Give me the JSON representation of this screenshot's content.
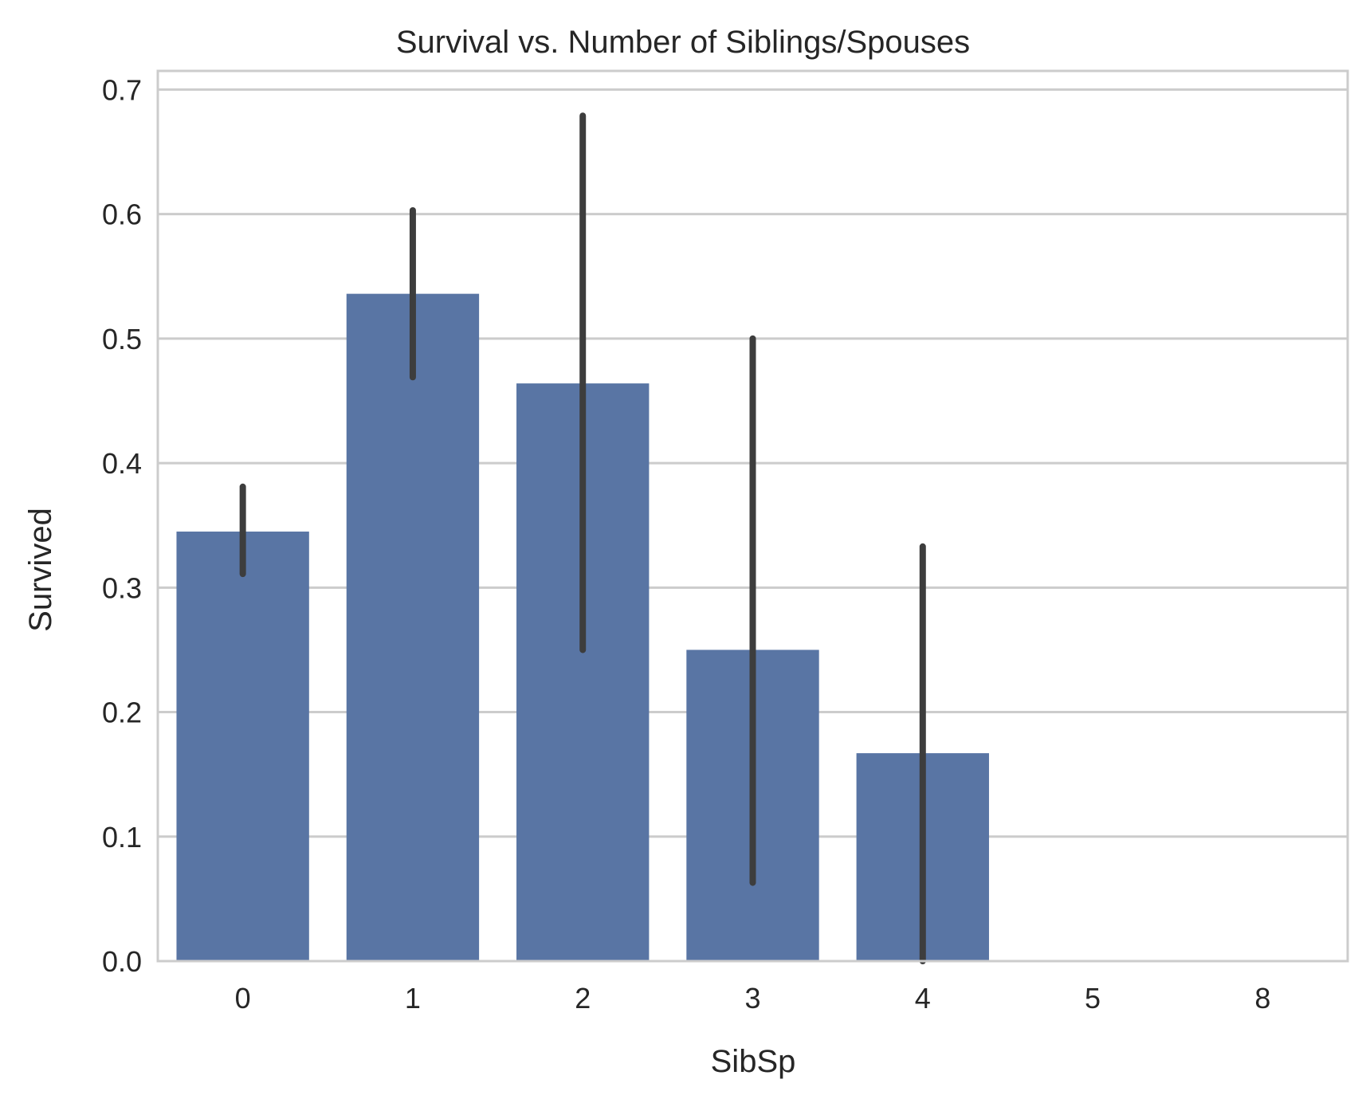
{
  "chart_data": {
    "type": "bar",
    "title": "Survival vs. Number of Siblings/Spouses",
    "xlabel": "SibSp",
    "ylabel": "Survived",
    "categories": [
      "0",
      "1",
      "2",
      "3",
      "4",
      "5",
      "8"
    ],
    "values": [
      0.345,
      0.536,
      0.464,
      0.25,
      0.167,
      0.0,
      0.0
    ],
    "error_bars": [
      {
        "low": 0.311,
        "high": 0.381
      },
      {
        "low": 0.469,
        "high": 0.603
      },
      {
        "low": 0.25,
        "high": 0.679
      },
      {
        "low": 0.063,
        "high": 0.5
      },
      {
        "low": 0.0,
        "high": 0.333
      },
      null,
      null
    ],
    "ylim": [
      0,
      0.715
    ],
    "yticks": [
      "0.0",
      "0.1",
      "0.2",
      "0.3",
      "0.4",
      "0.5",
      "0.6",
      "0.7"
    ],
    "grid": "horizontal",
    "colors": {
      "bar": "#5975a4",
      "error_bar": "#3d3d3d",
      "grid": "#cccccc",
      "spine": "#cccccc",
      "text": "#262626"
    }
  }
}
